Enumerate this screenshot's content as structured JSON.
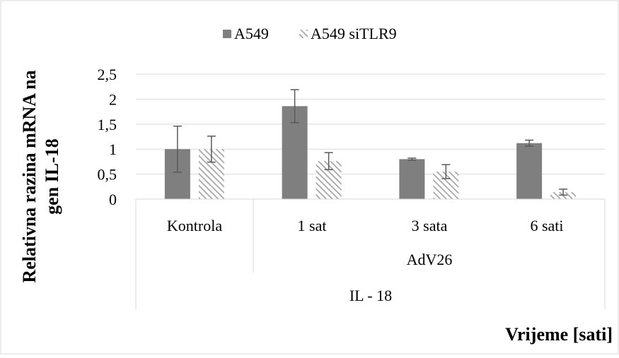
{
  "chart_data": {
    "type": "bar",
    "title": "",
    "ylabel_lines": [
      "Relativna razina mRNA na",
      "gen IL-18"
    ],
    "xlabel": "Vrijeme [sati]",
    "ylim": [
      0,
      2.5
    ],
    "y_ticks": [
      "0",
      "0,5",
      "1",
      "1,5",
      "2",
      "2,5"
    ],
    "grid": true,
    "legend_position": "top",
    "categories": [
      "Kontrola",
      "1 sat",
      "3 sata",
      "6 sati"
    ],
    "group_labels": {
      "level2": "AdV26",
      "level3": "IL - 18"
    },
    "colors": {
      "A549": "#7f7f7f",
      "A549 siTLR9": "#a6a6a6"
    },
    "series": [
      {
        "name": "A549",
        "pattern": "solid",
        "values": [
          1.0,
          1.86,
          0.8,
          1.12
        ],
        "errors": [
          0.46,
          0.33,
          0.02,
          0.06
        ]
      },
      {
        "name": "A549 siTLR9",
        "pattern": "hatched",
        "values": [
          1.0,
          0.76,
          0.55,
          0.14
        ],
        "errors": [
          0.26,
          0.17,
          0.14,
          0.06
        ]
      }
    ]
  }
}
